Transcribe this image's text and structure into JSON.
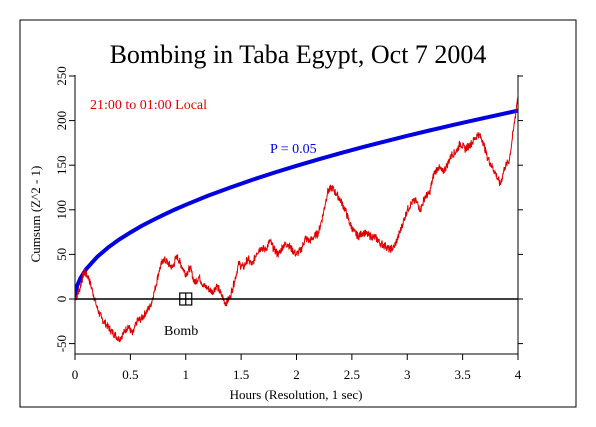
{
  "chart_data": {
    "type": "line",
    "title": "Bombing in Taba Egypt, Oct 7 2004",
    "xlabel": "Hours (Resolution, 1 sec)",
    "ylabel": "Cumsum (Z^2 - 1)",
    "xlim": [
      0,
      4
    ],
    "ylim": [
      -55,
      250
    ],
    "x_ticks": [
      0,
      0.5,
      1,
      1.5,
      2,
      2.5,
      3,
      3.5,
      4
    ],
    "x_tick_labels": [
      "0",
      "0.5",
      "1",
      "1.5",
      "2",
      "2.5",
      "3",
      "3.5",
      "4"
    ],
    "y_ticks": [
      -50,
      0,
      50,
      100,
      150,
      200,
      250
    ],
    "y_tick_labels": [
      "-50",
      "0",
      "50",
      "100",
      "150",
      "200",
      "250"
    ],
    "grid": false,
    "annotations": {
      "time_window": "21:00 to 01:00 Local",
      "probability": "P = 0.05",
      "event": "Bomb"
    },
    "event_marker": {
      "x": 1.0,
      "y": 0
    },
    "colors": {
      "series": "#e00000",
      "envelope": "#0000e0",
      "zero_line": "#000000"
    },
    "series": [
      {
        "values": [
          [
            0.0,
            0
          ],
          [
            0.04,
            10
          ],
          [
            0.08,
            30
          ],
          [
            0.12,
            25
          ],
          [
            0.16,
            8
          ],
          [
            0.2,
            -10
          ],
          [
            0.24,
            -22
          ],
          [
            0.28,
            -28
          ],
          [
            0.32,
            -35
          ],
          [
            0.36,
            -40
          ],
          [
            0.4,
            -45
          ],
          [
            0.44,
            -38
          ],
          [
            0.48,
            -30
          ],
          [
            0.52,
            -40
          ],
          [
            0.56,
            -25
          ],
          [
            0.6,
            -22
          ],
          [
            0.64,
            -15
          ],
          [
            0.68,
            -8
          ],
          [
            0.72,
            10
          ],
          [
            0.76,
            32
          ],
          [
            0.8,
            45
          ],
          [
            0.84,
            40
          ],
          [
            0.88,
            35
          ],
          [
            0.92,
            48
          ],
          [
            0.96,
            38
          ],
          [
            1.0,
            28
          ],
          [
            1.04,
            35
          ],
          [
            1.08,
            18
          ],
          [
            1.12,
            25
          ],
          [
            1.16,
            15
          ],
          [
            1.2,
            12
          ],
          [
            1.24,
            8
          ],
          [
            1.28,
            15
          ],
          [
            1.32,
            5
          ],
          [
            1.36,
            -5
          ],
          [
            1.4,
            2
          ],
          [
            1.44,
            20
          ],
          [
            1.48,
            40
          ],
          [
            1.52,
            35
          ],
          [
            1.56,
            45
          ],
          [
            1.6,
            38
          ],
          [
            1.64,
            52
          ],
          [
            1.68,
            58
          ],
          [
            1.72,
            55
          ],
          [
            1.76,
            65
          ],
          [
            1.8,
            55
          ],
          [
            1.84,
            50
          ],
          [
            1.88,
            60
          ],
          [
            1.92,
            62
          ],
          [
            1.96,
            55
          ],
          [
            2.0,
            50
          ],
          [
            2.04,
            55
          ],
          [
            2.08,
            68
          ],
          [
            2.12,
            65
          ],
          [
            2.16,
            70
          ],
          [
            2.2,
            75
          ],
          [
            2.24,
            95
          ],
          [
            2.28,
            120
          ],
          [
            2.32,
            125
          ],
          [
            2.36,
            118
          ],
          [
            2.4,
            110
          ],
          [
            2.44,
            100
          ],
          [
            2.48,
            85
          ],
          [
            2.52,
            75
          ],
          [
            2.56,
            70
          ],
          [
            2.6,
            75
          ],
          [
            2.64,
            72
          ],
          [
            2.68,
            70
          ],
          [
            2.72,
            68
          ],
          [
            2.76,
            62
          ],
          [
            2.8,
            60
          ],
          [
            2.84,
            55
          ],
          [
            2.88,
            58
          ],
          [
            2.92,
            70
          ],
          [
            2.96,
            85
          ],
          [
            3.0,
            100
          ],
          [
            3.04,
            108
          ],
          [
            3.08,
            110
          ],
          [
            3.12,
            100
          ],
          [
            3.16,
            115
          ],
          [
            3.2,
            118
          ],
          [
            3.24,
            140
          ],
          [
            3.28,
            148
          ],
          [
            3.32,
            142
          ],
          [
            3.36,
            150
          ],
          [
            3.4,
            162
          ],
          [
            3.44,
            165
          ],
          [
            3.48,
            175
          ],
          [
            3.52,
            168
          ],
          [
            3.56,
            172
          ],
          [
            3.6,
            178
          ],
          [
            3.64,
            185
          ],
          [
            3.68,
            178
          ],
          [
            3.72,
            160
          ],
          [
            3.76,
            150
          ],
          [
            3.8,
            140
          ],
          [
            3.84,
            128
          ],
          [
            3.88,
            148
          ],
          [
            3.92,
            155
          ],
          [
            3.96,
            190
          ],
          [
            4.0,
            230
          ]
        ]
      },
      {
        "name": "P = 0.05",
        "values": [
          [
            0.005,
            7.5
          ],
          [
            0.02,
            15.0
          ],
          [
            0.05,
            23.6
          ],
          [
            0.1,
            33.4
          ],
          [
            0.2,
            47.2
          ],
          [
            0.3,
            57.8
          ],
          [
            0.4,
            66.8
          ],
          [
            0.5,
            74.6
          ],
          [
            0.6,
            81.8
          ],
          [
            0.7,
            88.3
          ],
          [
            0.8,
            94.4
          ],
          [
            0.9,
            100.2
          ],
          [
            1.0,
            105.6
          ],
          [
            1.2,
            115.7
          ],
          [
            1.4,
            124.9
          ],
          [
            1.6,
            133.6
          ],
          [
            1.8,
            141.7
          ],
          [
            2.0,
            149.3
          ],
          [
            2.2,
            156.6
          ],
          [
            2.4,
            163.6
          ],
          [
            2.6,
            170.3
          ],
          [
            2.8,
            176.7
          ],
          [
            3.0,
            182.9
          ],
          [
            3.2,
            188.9
          ],
          [
            3.4,
            194.7
          ],
          [
            3.6,
            200.3
          ],
          [
            3.8,
            205.8
          ],
          [
            4.0,
            211.2
          ]
        ]
      }
    ]
  }
}
